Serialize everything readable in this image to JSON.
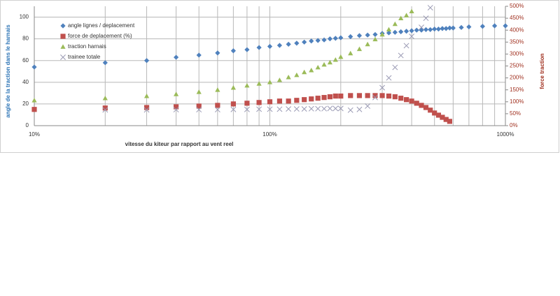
{
  "chart_data": {
    "type": "scatter",
    "x_label": "vitesse du kiteur par rapport au vent reel",
    "y_label": "angle de la traction dans le harnais",
    "y2_label": "force traction",
    "log_x": true,
    "grid": true,
    "legend": "upper left",
    "xlim": [
      10,
      1000
    ],
    "xticks": [
      {
        "value": 10,
        "label": "10%"
      },
      {
        "value": 100,
        "label": "100%"
      },
      {
        "value": 1000,
        "label": "1000%"
      }
    ],
    "ylim": [
      0,
      110
    ],
    "yticks": [
      0,
      20,
      40,
      60,
      80,
      100
    ],
    "y2lim": [
      0,
      500
    ],
    "y2ticks": [
      {
        "value": 0,
        "label": "0%"
      },
      {
        "value": 50,
        "label": "50%"
      },
      {
        "value": 100,
        "label": "100%"
      },
      {
        "value": 150,
        "label": "150%"
      },
      {
        "value": 200,
        "label": "200%"
      },
      {
        "value": 250,
        "label": "250%"
      },
      {
        "value": 300,
        "label": "300%"
      },
      {
        "value": 350,
        "label": "350%"
      },
      {
        "value": 400,
        "label": "400%"
      },
      {
        "value": 450,
        "label": "450%"
      },
      {
        "value": 500,
        "label": "500%"
      }
    ],
    "x": [
      10,
      20,
      30,
      40,
      50,
      60,
      70,
      80,
      90,
      100,
      110,
      120,
      130,
      140,
      150,
      160,
      170,
      180,
      190,
      200,
      220,
      240,
      260,
      280,
      300,
      320,
      340,
      360,
      380,
      400,
      420,
      440,
      460,
      480,
      500,
      520,
      540,
      560,
      580,
      600,
      650,
      700,
      800,
      900,
      1000
    ],
    "series": [
      {
        "name": "angle lignes / deplacement",
        "color": "#4f81bd",
        "marker": "diamond",
        "values": [
          54,
          58,
          60,
          63,
          65,
          67,
          69,
          70,
          72,
          73,
          74,
          75,
          76,
          77,
          78,
          78.5,
          79,
          80,
          80.5,
          81,
          82,
          83,
          83.5,
          84,
          85,
          85.5,
          86,
          86.5,
          87,
          87.5,
          88,
          88,
          88.5,
          88.5,
          89,
          89,
          89.5,
          89.5,
          90,
          90,
          90.5,
          91,
          91.5,
          92,
          92
        ]
      },
      {
        "name": "force de deplacement (%)",
        "color": "#c0504d",
        "marker": "square",
        "axis": "y2",
        "values": [
          68,
          74,
          76,
          79,
          82,
          85,
          91,
          94,
          97,
          100,
          103,
          103,
          106,
          109,
          112,
          115,
          118,
          121,
          124,
          124,
          126,
          126,
          126,
          126,
          126,
          124,
          121,
          115,
          109,
          103,
          94,
          85,
          76,
          65,
          53,
          44,
          35,
          26,
          18,
          null,
          null,
          null,
          null,
          null,
          null
        ]
      },
      {
        "name": "traction harnais",
        "color": "#9bbb59",
        "marker": "triangle",
        "axis": "y2",
        "values": [
          106,
          115,
          124,
          132,
          141,
          150,
          159,
          168,
          176,
          182,
          191,
          203,
          212,
          224,
          232,
          244,
          256,
          265,
          276,
          288,
          303,
          321,
          341,
          362,
          382,
          403,
          426,
          450,
          462,
          479,
          null,
          null,
          null,
          null,
          null,
          null,
          null,
          null,
          null,
          null,
          null,
          null,
          null,
          null,
          null
        ]
      },
      {
        "name": "trainee totale",
        "color": "#9a9ab4",
        "marker": "x",
        "axis": "y2",
        "values": [
          null,
          66,
          66,
          67,
          67,
          67,
          68,
          68,
          69,
          69,
          69,
          70,
          70,
          70,
          71,
          71,
          71,
          72,
          72,
          72,
          65,
          68,
          82,
          118,
          159,
          200,
          244,
          294,
          335,
          374,
          null,
          412,
          450,
          494,
          null,
          null,
          null,
          null,
          null,
          null,
          null,
          null,
          null,
          null,
          null
        ]
      }
    ]
  }
}
